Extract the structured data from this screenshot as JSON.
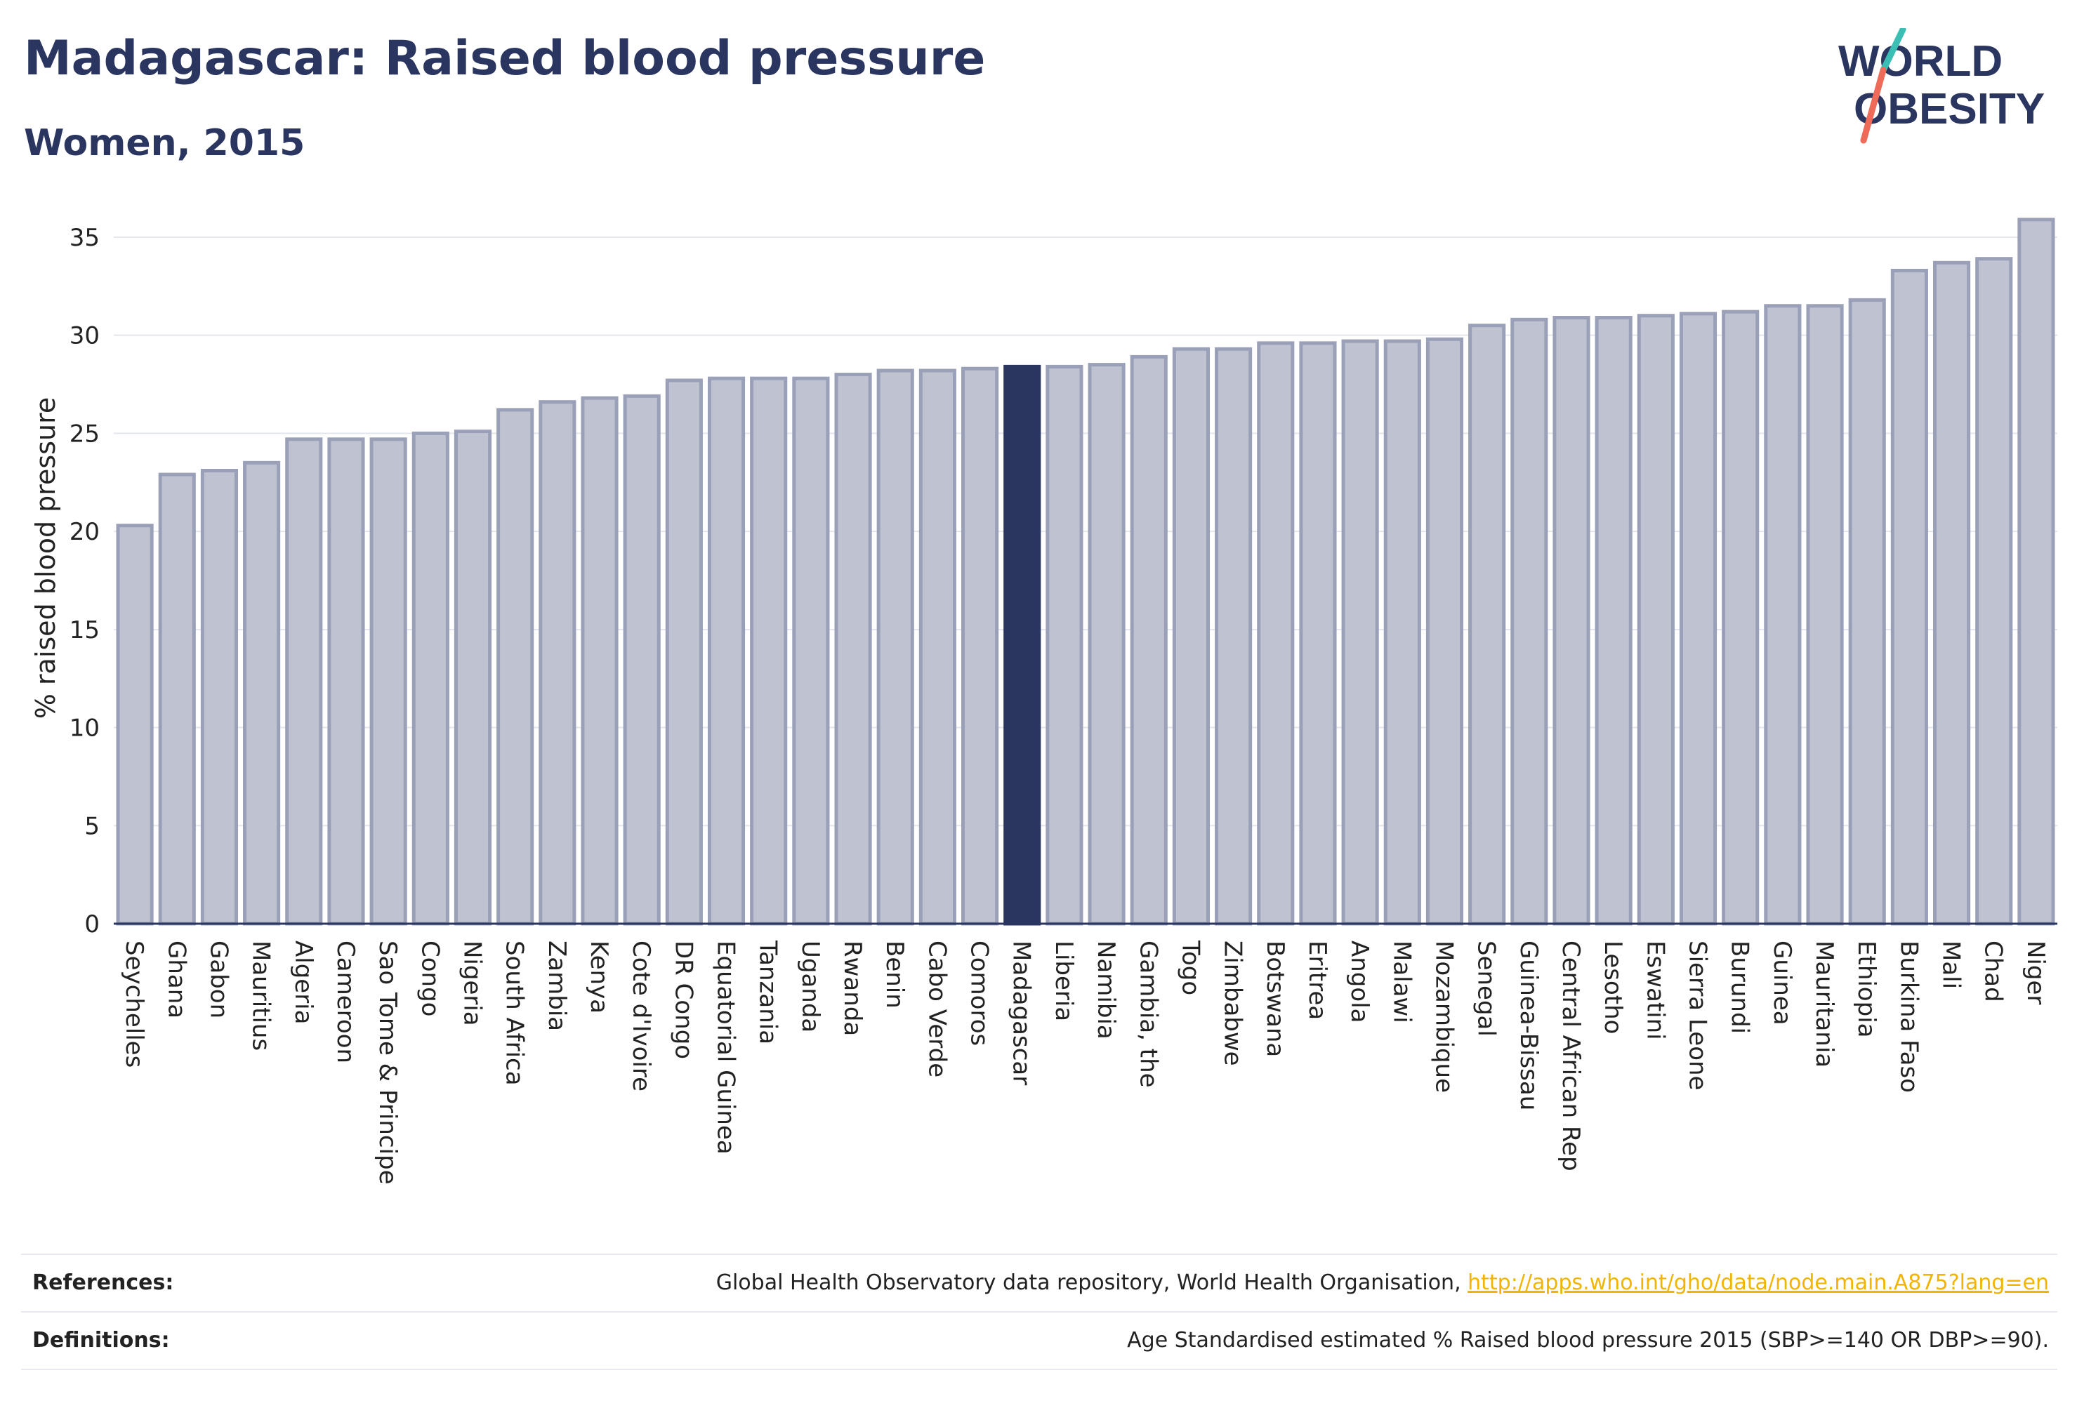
{
  "header": {
    "title": "Madagascar: Raised blood pressure",
    "subtitle": "Women, 2015"
  },
  "logo": {
    "line1": "WORLD",
    "line2": "OBESITY"
  },
  "colors": {
    "highlight": "#2a3560",
    "bar_fill": "#bfc3d1",
    "bar_stroke": "#9aa0b8",
    "logo_slash_teal": "#3bbfb4",
    "logo_slash_coral": "#ee6b5a"
  },
  "chart_data": {
    "type": "bar",
    "ylabel": "% raised blood pressure",
    "xlabel": "",
    "ylim": [
      0,
      36
    ],
    "yticks": [
      0,
      5,
      10,
      15,
      20,
      25,
      30,
      35
    ],
    "grid": true,
    "highlight": "Madagascar",
    "categories": [
      "Seychelles",
      "Ghana",
      "Gabon",
      "Mauritius",
      "Algeria",
      "Cameroon",
      "Sao Tome & Principe",
      "Congo",
      "Nigeria",
      "South Africa",
      "Zambia",
      "Kenya",
      "Cote d'Ivoire",
      "DR Congo",
      "Equatorial Guinea",
      "Tanzania",
      "Uganda",
      "Rwanda",
      "Benin",
      "Cabo Verde",
      "Comoros",
      "Madagascar",
      "Liberia",
      "Namibia",
      "Gambia, the",
      "Togo",
      "Zimbabwe",
      "Botswana",
      "Eritrea",
      "Angola",
      "Malawi",
      "Mozambique",
      "Senegal",
      "Guinea-Bissau",
      "Central African Rep",
      "Lesotho",
      "Eswatini",
      "Sierra Leone",
      "Burundi",
      "Guinea",
      "Mauritania",
      "Ethiopia",
      "Burkina Faso",
      "Mali",
      "Chad",
      "Niger"
    ],
    "values": [
      20.3,
      22.9,
      23.1,
      23.5,
      24.7,
      24.7,
      24.7,
      25.0,
      25.1,
      26.2,
      26.6,
      26.8,
      26.9,
      27.7,
      27.8,
      27.8,
      27.8,
      28.0,
      28.2,
      28.2,
      28.3,
      28.4,
      28.4,
      28.5,
      28.9,
      29.3,
      29.3,
      29.6,
      29.6,
      29.7,
      29.7,
      29.8,
      30.5,
      30.8,
      30.9,
      30.9,
      31.0,
      31.1,
      31.2,
      31.5,
      31.5,
      31.8,
      33.3,
      33.7,
      33.9,
      35.9
    ]
  },
  "footer": {
    "references_label": "References:",
    "references_text": "Global Health Observatory data repository, World Health Organisation, ",
    "references_link": "http://apps.who.int/gho/data/node.main.A875?lang=en",
    "definitions_label": "Definitions:",
    "definitions_text": "Age Standardised estimated % Raised blood pressure 2015 (SBP>=140 OR DBP>=90)."
  }
}
